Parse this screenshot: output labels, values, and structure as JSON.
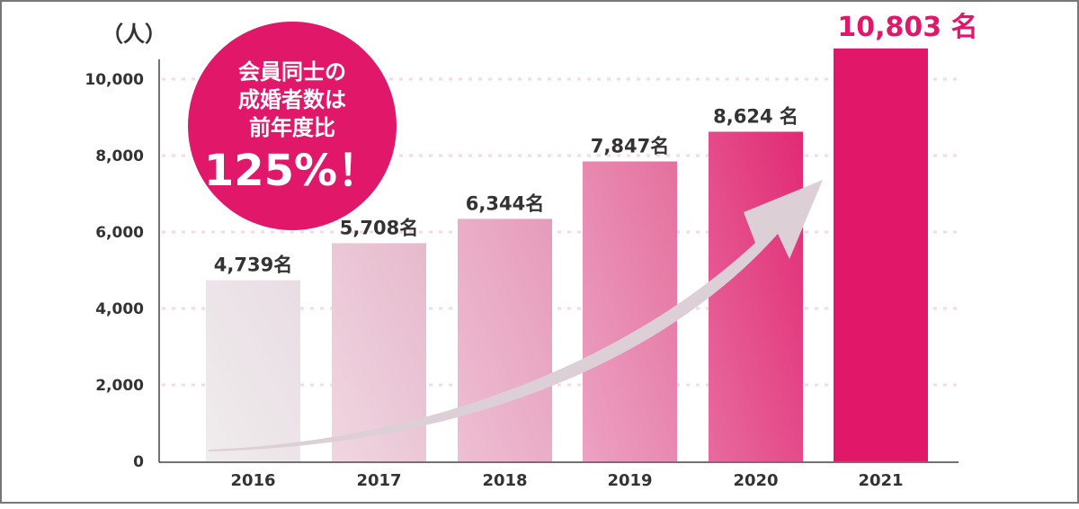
{
  "chart_data": {
    "type": "bar",
    "title": "",
    "xlabel": "",
    "ylabel": "（人）",
    "ylim": [
      0,
      10000
    ],
    "yticks": [
      0,
      2000,
      4000,
      6000,
      8000,
      10000
    ],
    "ytick_labels": [
      "0",
      "2,000",
      "4,000",
      "6,000",
      "8,000",
      "10,000"
    ],
    "categories": [
      "2016",
      "2017",
      "2018",
      "2019",
      "2020",
      "2021"
    ],
    "values": [
      4739,
      5708,
      6344,
      7847,
      8624,
      10803
    ],
    "data_labels": [
      "4,739名",
      "5,708名",
      "6,344名",
      "7,847名",
      "8,624 名",
      "10,803 名"
    ],
    "bar_colors": [
      [
        "#f0eced",
        "#e8dde3"
      ],
      [
        "#f0d6e1",
        "#e6b9cc"
      ],
      [
        "#eebfd3",
        "#e69bbb"
      ],
      [
        "#eca2c3",
        "#e4709e"
      ],
      [
        "#e76b9f",
        "#e12a73"
      ],
      [
        "#e1186a",
        "#e1186a"
      ]
    ],
    "grid": "dotted horizontal",
    "annotation": {
      "lines": [
        "会員同士の",
        "成婚者数は",
        "前年度比"
      ],
      "highlight": "125%！",
      "color": "#e1186a"
    },
    "arrow_color": "#dccfd6"
  }
}
